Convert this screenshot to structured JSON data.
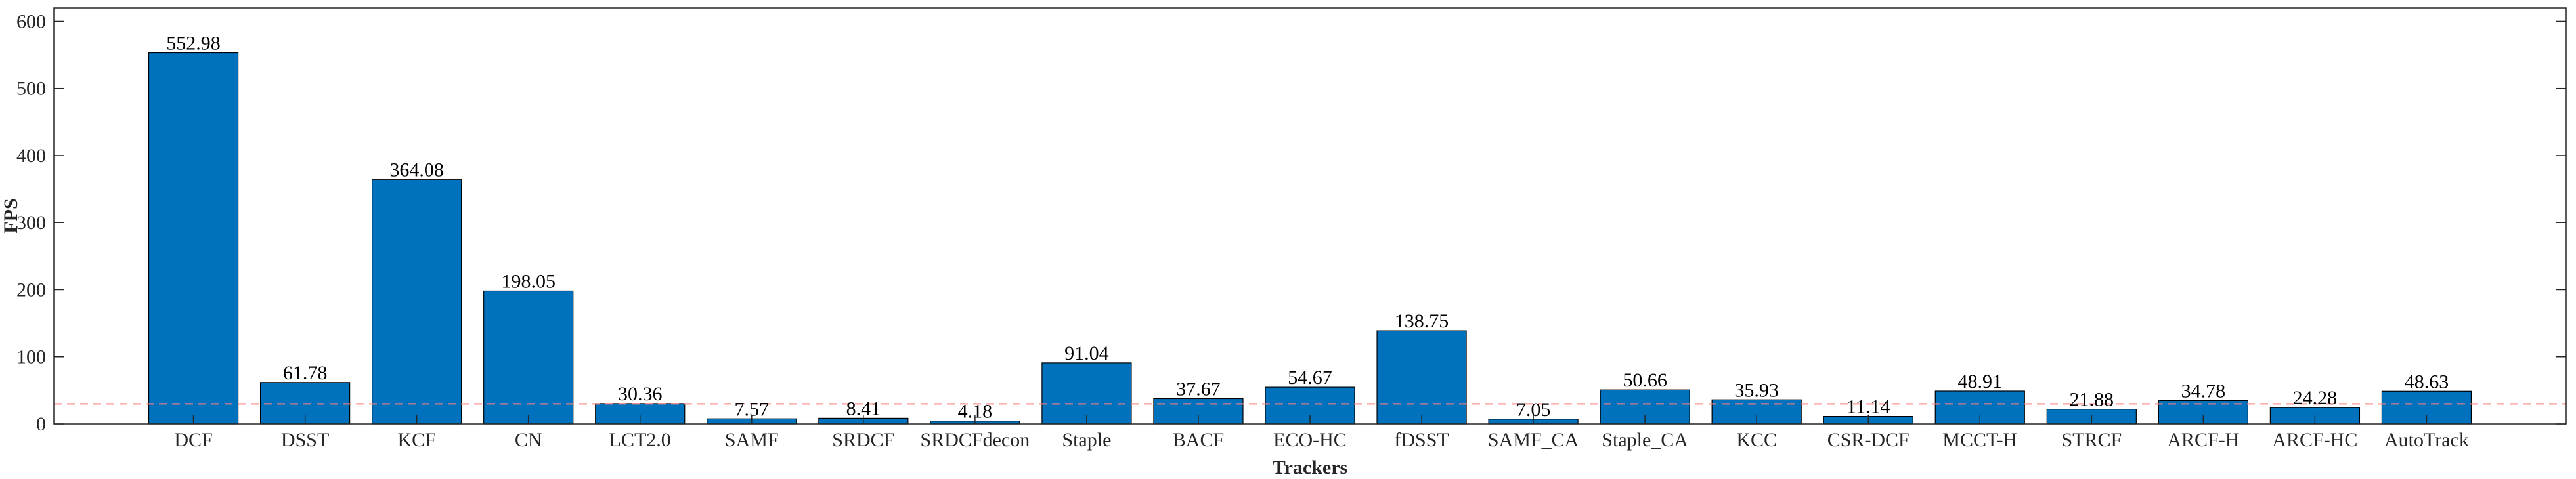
{
  "chart_data": {
    "type": "bar",
    "title": "",
    "xlabel": "Trackers",
    "ylabel": "FPS",
    "ylim": [
      0,
      620
    ],
    "yticks": [
      0,
      100,
      200,
      300,
      400,
      500,
      600
    ],
    "grid": false,
    "categories": [
      "DCF",
      "DSST",
      "KCF",
      "CN",
      "LCT2.0",
      "SAMF",
      "SRDCF",
      "SRDCFdecon",
      "Staple",
      "BACF",
      "ECO-HC",
      "fDSST",
      "SAMF_CA",
      "Staple_CA",
      "KCC",
      "CSR-DCF",
      "MCCT-H",
      "STRCF",
      "ARCF-H",
      "ARCF-HC",
      "AutoTrack"
    ],
    "values": [
      552.98,
      61.78,
      364.08,
      198.05,
      30.36,
      7.57,
      8.41,
      4.18,
      91.04,
      37.67,
      54.67,
      138.75,
      7.05,
      50.66,
      35.93,
      11.14,
      48.91,
      21.88,
      34.78,
      24.28,
      48.63
    ],
    "data_labels": [
      "552.98",
      "61.78",
      "364.08",
      "198.05",
      "30.36",
      "7.57",
      "8.41",
      "4.18",
      "91.04",
      "37.67",
      "54.67",
      "138.75",
      "7.05",
      "50.66",
      "35.93",
      "11.14",
      "48.91",
      "21.88",
      "34.78",
      "24.28",
      "48.63"
    ],
    "reference_line": {
      "value": 30,
      "style": "dashed",
      "color": "#ff8080"
    },
    "bar_color": "#0072bd",
    "bar_edge_color": "#000000"
  }
}
